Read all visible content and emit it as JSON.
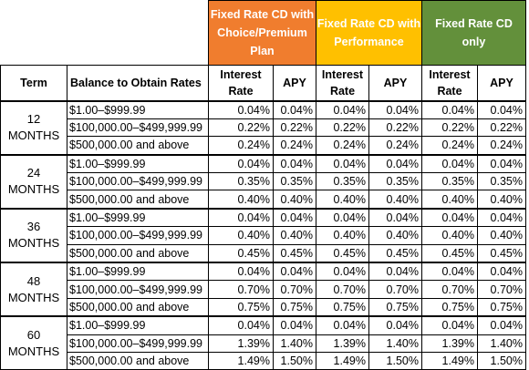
{
  "products": [
    {
      "name": "Fixed Rate CD with Choice/Premium Plan",
      "lines": [
        "Fixed Rate CD with",
        "Choice/Premium",
        "Plan"
      ],
      "color": "#F07D2E"
    },
    {
      "name": "Fixed Rate CD with Performance",
      "lines": [
        "Fixed Rate CD with",
        "Performance"
      ],
      "color": "#FFC000"
    },
    {
      "name": "Fixed Rate CD only",
      "lines": [
        "Fixed Rate CD",
        "only"
      ],
      "color": "#63903B"
    }
  ],
  "headers": {
    "term": "Term",
    "balance": "Balance to Obtain Rates",
    "interest_rate_l1": "Interest",
    "interest_rate_l2": "Rate",
    "apy": "APY"
  },
  "groups": [
    {
      "term_l1": "12",
      "term_l2": "MONTHS",
      "rows": [
        {
          "balance": "$1.00–$999.99",
          "values": [
            "0.04%",
            "0.04%",
            "0.04%",
            "0.04%",
            "0.04%",
            "0.04%"
          ]
        },
        {
          "balance": "$100,000.00–$499,999.99",
          "values": [
            "0.22%",
            "0.22%",
            "0.22%",
            "0.22%",
            "0.22%",
            "0.22%"
          ]
        },
        {
          "balance": "$500,000.00 and above",
          "values": [
            "0.24%",
            "0.24%",
            "0.24%",
            "0.24%",
            "0.24%",
            "0.24%"
          ]
        }
      ]
    },
    {
      "term_l1": "24",
      "term_l2": "MONTHS",
      "rows": [
        {
          "balance": "$1.00–$999.99",
          "values": [
            "0.04%",
            "0.04%",
            "0.04%",
            "0.04%",
            "0.04%",
            "0.04%"
          ]
        },
        {
          "balance": "$100,000.00–$499,999.99",
          "values": [
            "0.35%",
            "0.35%",
            "0.35%",
            "0.35%",
            "0.35%",
            "0.35%"
          ]
        },
        {
          "balance": "$500,000.00 and above",
          "values": [
            "0.40%",
            "0.40%",
            "0.40%",
            "0.40%",
            "0.40%",
            "0.40%"
          ]
        }
      ]
    },
    {
      "term_l1": "36",
      "term_l2": "MONTHS",
      "rows": [
        {
          "balance": "$1.00–$999.99",
          "values": [
            "0.04%",
            "0.04%",
            "0.04%",
            "0.04%",
            "0.04%",
            "0.04%"
          ]
        },
        {
          "balance": "$100,000.00–$499,999.99",
          "values": [
            "0.40%",
            "0.40%",
            "0.40%",
            "0.40%",
            "0.40%",
            "0.40%"
          ]
        },
        {
          "balance": "$500,000.00 and above",
          "values": [
            "0.45%",
            "0.45%",
            "0.45%",
            "0.45%",
            "0.45%",
            "0.45%"
          ]
        }
      ]
    },
    {
      "term_l1": "48",
      "term_l2": "MONTHS",
      "rows": [
        {
          "balance": "$1.00–$999.99",
          "values": [
            "0.04%",
            "0.04%",
            "0.04%",
            "0.04%",
            "0.04%",
            "0.04%"
          ]
        },
        {
          "balance": "$100,000.00–$499,999.99",
          "values": [
            "0.70%",
            "0.70%",
            "0.70%",
            "0.70%",
            "0.70%",
            "0.70%"
          ]
        },
        {
          "balance": "$500,000.00 and above",
          "values": [
            "0.75%",
            "0.75%",
            "0.75%",
            "0.75%",
            "0.75%",
            "0.75%"
          ]
        }
      ]
    },
    {
      "term_l1": "60",
      "term_l2": "MONTHS",
      "rows": [
        {
          "balance": "$1.00–$999.99",
          "values": [
            "0.04%",
            "0.04%",
            "0.04%",
            "0.04%",
            "0.04%",
            "0.04%"
          ]
        },
        {
          "balance": "$100,000.00–$499,999.99",
          "values": [
            "1.39%",
            "1.40%",
            "1.39%",
            "1.40%",
            "1.39%",
            "1.40%"
          ]
        },
        {
          "balance": "$500,000.00 and above",
          "values": [
            "1.49%",
            "1.50%",
            "1.49%",
            "1.50%",
            "1.49%",
            "1.50%"
          ]
        }
      ]
    }
  ]
}
